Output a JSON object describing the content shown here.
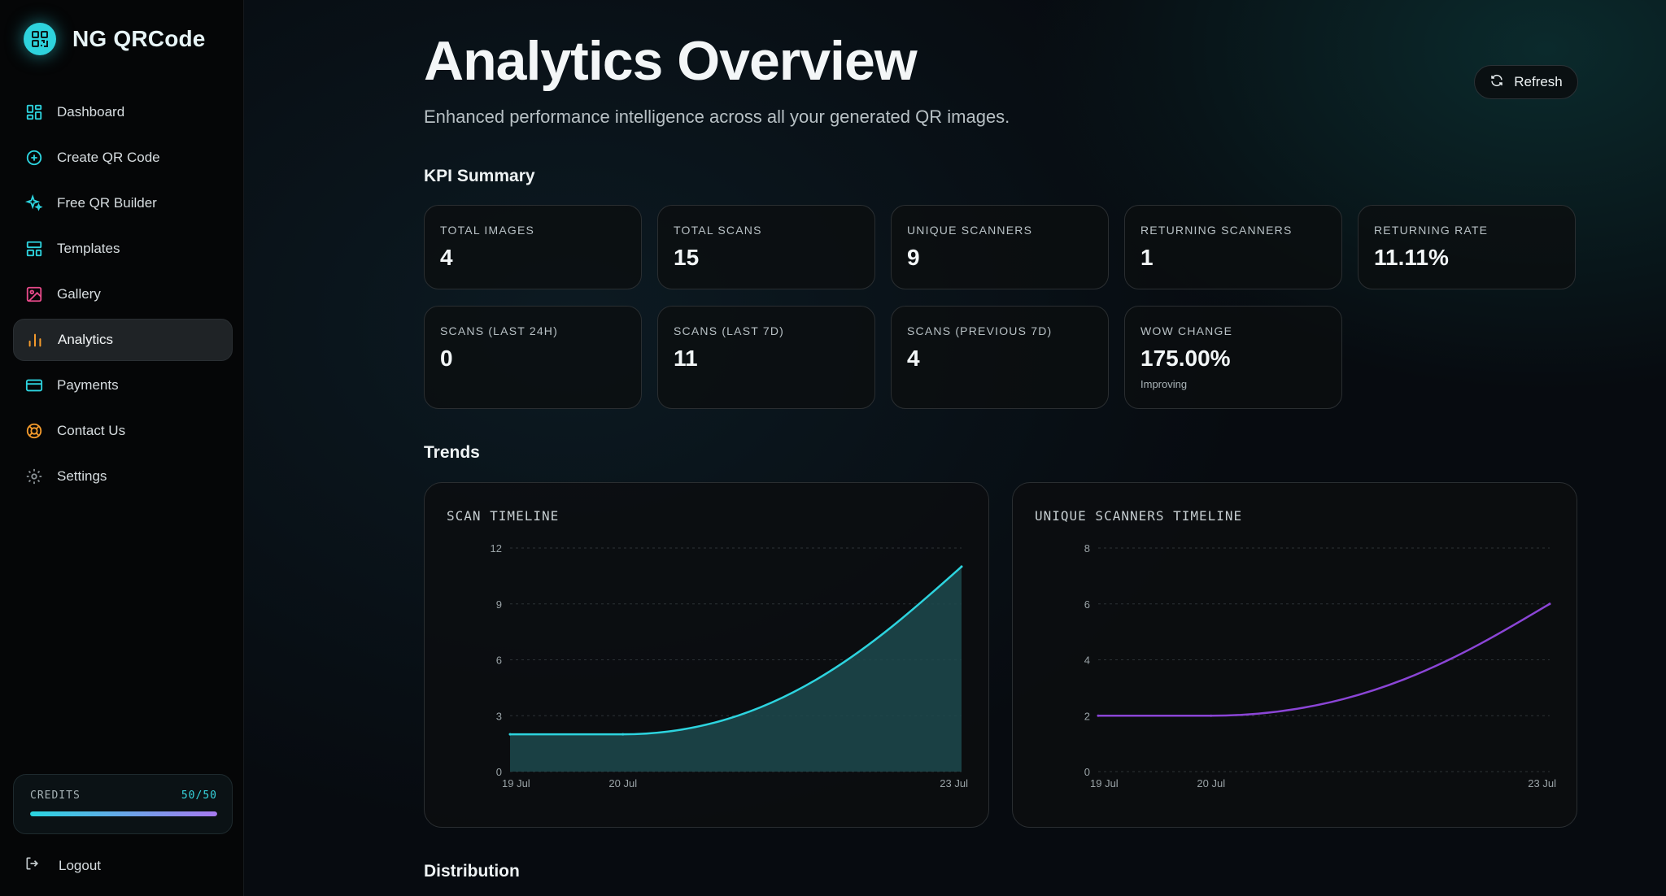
{
  "brand": {
    "name": "NG QRCode"
  },
  "sidebar": {
    "items": [
      {
        "label": "Dashboard",
        "icon": "dashboard-icon"
      },
      {
        "label": "Create QR Code",
        "icon": "plus-circle-icon"
      },
      {
        "label": "Free QR Builder",
        "icon": "sparkles-icon"
      },
      {
        "label": "Templates",
        "icon": "templates-icon"
      },
      {
        "label": "Gallery",
        "icon": "image-icon"
      },
      {
        "label": "Analytics",
        "icon": "bar-chart-icon",
        "active": true
      },
      {
        "label": "Payments",
        "icon": "credit-card-icon"
      },
      {
        "label": "Contact Us",
        "icon": "lifebuoy-icon"
      },
      {
        "label": "Settings",
        "icon": "gear-icon"
      }
    ],
    "credits": {
      "label": "CREDITS",
      "value": "50/50",
      "fraction": 1.0
    },
    "logout_label": "Logout"
  },
  "header": {
    "title": "Analytics Overview",
    "subtitle": "Enhanced performance intelligence across all your generated QR images.",
    "refresh_label": "Refresh"
  },
  "kpi": {
    "section_title": "KPI Summary",
    "cards": [
      {
        "label": "TOTAL IMAGES",
        "value": "4"
      },
      {
        "label": "TOTAL SCANS",
        "value": "15"
      },
      {
        "label": "UNIQUE SCANNERS",
        "value": "9"
      },
      {
        "label": "RETURNING SCANNERS",
        "value": "1"
      },
      {
        "label": "RETURNING RATE",
        "value": "11.11%"
      },
      {
        "label": "SCANS (LAST 24H)",
        "value": "0"
      },
      {
        "label": "SCANS (LAST 7D)",
        "value": "11"
      },
      {
        "label": "SCANS (PREVIOUS 7D)",
        "value": "4"
      },
      {
        "label": "WOW CHANGE",
        "value": "175.00%",
        "note": "Improving"
      }
    ]
  },
  "trends": {
    "section_title": "Trends"
  },
  "distribution": {
    "section_title": "Distribution"
  },
  "colors": {
    "accent_cyan": "#2dd4df",
    "accent_purple": "#8b45d6",
    "credits_end": "#a779f0"
  },
  "chart_data": [
    {
      "type": "area",
      "title": "SCAN TIMELINE",
      "categories": [
        "19 Jul",
        "20 Jul",
        "23 Jul"
      ],
      "values": [
        2,
        2,
        11
      ],
      "yticks": [
        "0",
        "3",
        "6",
        "9",
        "12"
      ],
      "ylim": [
        0,
        12
      ],
      "grid": true,
      "color": "#2dd4df"
    },
    {
      "type": "line",
      "title": "UNIQUE SCANNERS TIMELINE",
      "categories": [
        "19 Jul",
        "20 Jul",
        "23 Jul"
      ],
      "values": [
        2,
        2,
        6
      ],
      "yticks": [
        "0",
        "2",
        "4",
        "6",
        "8"
      ],
      "ylim": [
        0,
        8
      ],
      "grid": true,
      "color": "#8b45d6"
    }
  ]
}
